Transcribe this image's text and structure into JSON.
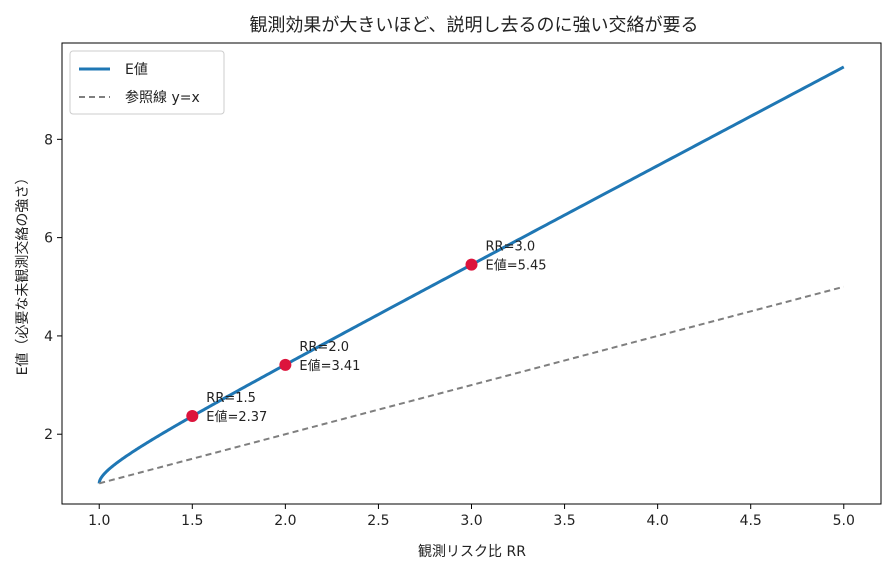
{
  "chart_data": {
    "type": "line",
    "title": "観測効果が大きいほど、説明し去るのに強い交絡が要る",
    "xlabel": "観測リスク比 RR",
    "ylabel": "E値（必要な未観測交絡の強さ）",
    "xlim": [
      0.8,
      5.2
    ],
    "ylim": [
      0.58,
      9.96
    ],
    "xticks": [
      "1.0",
      "1.5",
      "2.0",
      "2.5",
      "3.0",
      "3.5",
      "4.0",
      "4.5",
      "5.0"
    ],
    "yticks": [
      "2",
      "4",
      "6",
      "8"
    ],
    "grid": false,
    "legend_position": "top-left",
    "series": [
      {
        "name": "E値",
        "color": "#1f77b4",
        "style": "solid",
        "formula": "RR + sqrt(RR*(RR-1))",
        "x_range": [
          1.0,
          5.0
        ]
      },
      {
        "name": "参照線 y=x",
        "color": "#7f7f7f",
        "style": "dashed",
        "x_range": [
          1.0,
          5.0
        ]
      }
    ],
    "points": [
      {
        "x": 1.5,
        "y": 2.37,
        "label_rr": "RR=1.5",
        "label_e": "E値=2.37"
      },
      {
        "x": 2.0,
        "y": 3.41,
        "label_rr": "RR=2.0",
        "label_e": "E値=3.41"
      },
      {
        "x": 3.0,
        "y": 5.45,
        "label_rr": "RR=3.0",
        "label_e": "E値=5.45"
      }
    ],
    "point_color": "#dc143c"
  }
}
